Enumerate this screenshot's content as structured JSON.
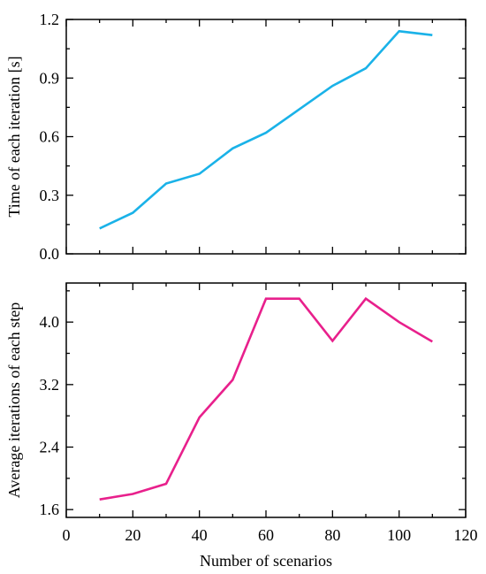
{
  "chart_data": [
    {
      "type": "line",
      "title": "",
      "xlabel": "",
      "ylabel": "Time of each iteration [s]",
      "xlim": [
        0,
        120
      ],
      "ylim": [
        0.0,
        1.2
      ],
      "xticks": [
        "0",
        "20",
        "40",
        "60",
        "80",
        "100",
        "120"
      ],
      "xtick_labels_shown": false,
      "yticks": [
        "0.0",
        "0.3",
        "0.6",
        "0.9",
        "1.2"
      ],
      "grid": false,
      "series": [
        {
          "color": "#1ab2e8",
          "x": [
            10,
            20,
            30,
            40,
            50,
            60,
            70,
            80,
            90,
            100,
            110
          ],
          "y": [
            0.13,
            0.21,
            0.36,
            0.41,
            0.54,
            0.62,
            0.74,
            0.86,
            0.95,
            1.14,
            1.12
          ]
        }
      ]
    },
    {
      "type": "line",
      "title": "",
      "xlabel": "Number of scenarios",
      "ylabel": "Average iterations of each step",
      "xlim": [
        0,
        120
      ],
      "ylim": [
        1.5,
        4.5
      ],
      "xticks": [
        "0",
        "20",
        "40",
        "60",
        "80",
        "100",
        "120"
      ],
      "xtick_labels_shown": true,
      "yticks": [
        "1.6",
        "2.4",
        "3.2",
        "4.0"
      ],
      "grid": false,
      "series": [
        {
          "color": "#e8208c",
          "x": [
            10,
            20,
            30,
            40,
            50,
            60,
            70,
            80,
            90,
            100,
            110
          ],
          "y": [
            1.73,
            1.8,
            1.93,
            2.78,
            3.26,
            4.3,
            4.3,
            3.76,
            4.3,
            4.0,
            3.75
          ]
        }
      ]
    }
  ]
}
